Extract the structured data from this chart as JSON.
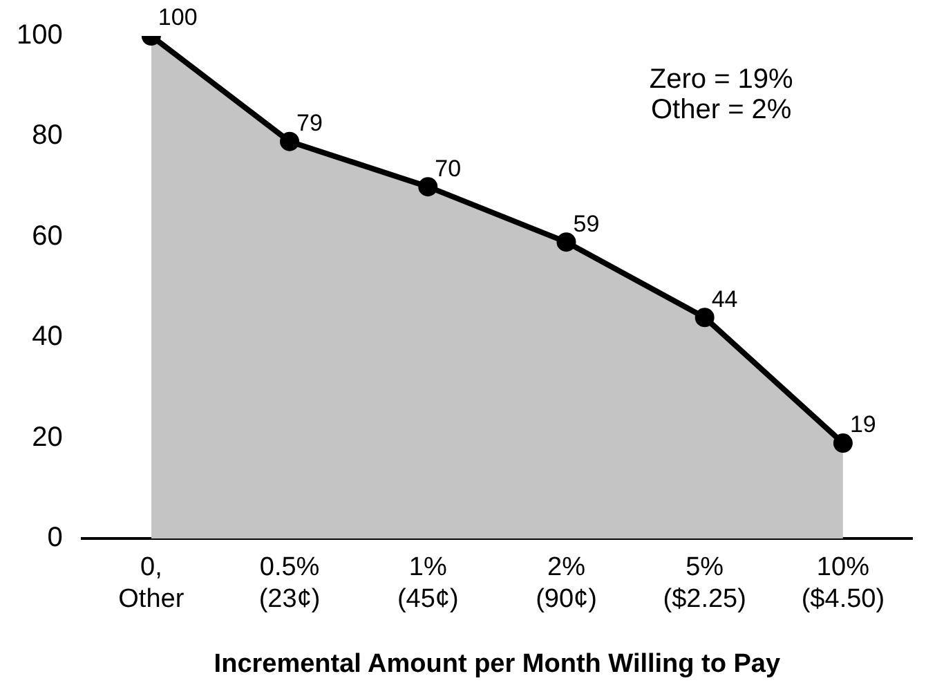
{
  "chart_data": {
    "type": "area",
    "xlabel": "Incremental Amount per Month Willing to Pay",
    "categories": [
      "0,\nOther",
      "0.5%\n(23¢)",
      "1%\n(45¢)",
      "2%\n(90¢)",
      "5%\n($2.25)",
      "10%\n($4.50)"
    ],
    "series": [
      {
        "color": "#000000",
        "values": [
          100,
          79,
          70,
          59,
          44,
          19
        ]
      }
    ],
    "ylim": [
      0,
      100
    ],
    "yticks": [
      0,
      20,
      40,
      60,
      80,
      100
    ],
    "grid": false,
    "legend": false,
    "marker": "circle",
    "line_style": "solid",
    "data_labels": true,
    "annotations": [
      "Zero = 19%",
      "Other = 2%"
    ]
  }
}
